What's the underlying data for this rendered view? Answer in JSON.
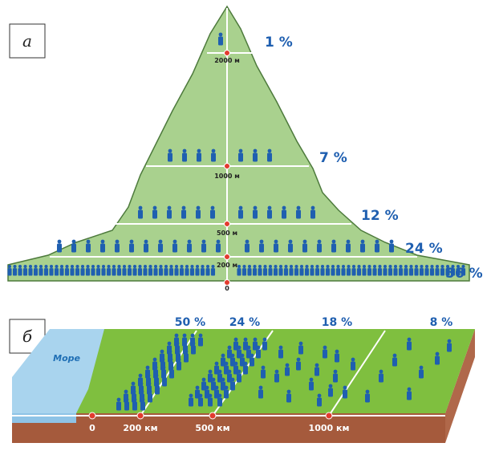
{
  "panel_a": {
    "label": "а",
    "altitudes": [
      "2000 м",
      "1000 м",
      "500 м",
      "200 м",
      "0"
    ],
    "shares": [
      "1 %",
      "7 %",
      "12 %",
      "24 %",
      "56 %"
    ]
  },
  "panel_b": {
    "label": "б",
    "sea": "Море",
    "distances": [
      "0",
      "200 км",
      "500 км",
      "1000 км"
    ],
    "shares": [
      "50 %",
      "24 %",
      "18 %",
      "8 %"
    ]
  }
}
